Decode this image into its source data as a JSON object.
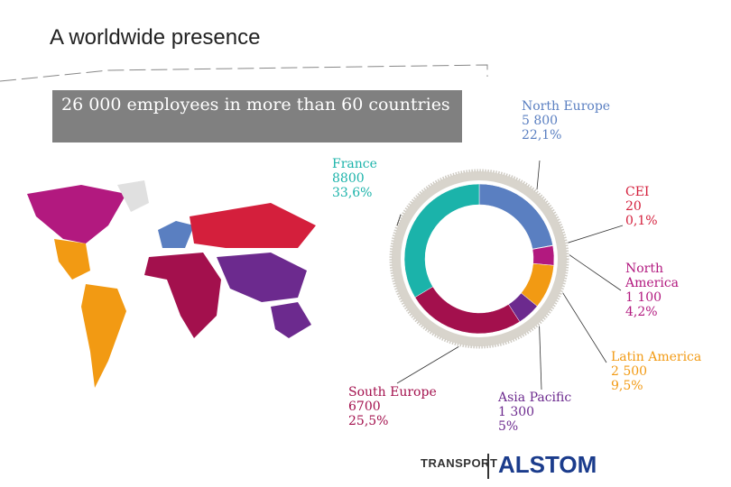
{
  "header": {
    "title": "A worldwide presence",
    "banner": "26 000 employees in more than 60 countries"
  },
  "chart_data": {
    "type": "donut",
    "categories": [
      "North Europe",
      "CEI",
      "North America",
      "Latin America",
      "Asia Pacific",
      "South Europe",
      "France"
    ],
    "employees": [
      5800,
      20,
      1100,
      2500,
      1300,
      6700,
      8800
    ],
    "employee_labels": [
      "5 800",
      "20",
      "1 100",
      "2 500",
      "1 300",
      "6700",
      "8800"
    ],
    "values": [
      22.1,
      0.1,
      4.2,
      9.5,
      5,
      25.5,
      33.6
    ],
    "value_labels": [
      "22,1%",
      "0,1%",
      "4,2%",
      "9,5%",
      "5%",
      "25,5%",
      "33,6%"
    ],
    "colors": [
      "#5a7fc1",
      "#d41f3c",
      "#b2197f",
      "#f29a13",
      "#6c2a8e",
      "#a3104d",
      "#1bb3aa"
    ]
  },
  "footer": {
    "division": "TRANSPORT",
    "brand": "ALSTOM"
  }
}
